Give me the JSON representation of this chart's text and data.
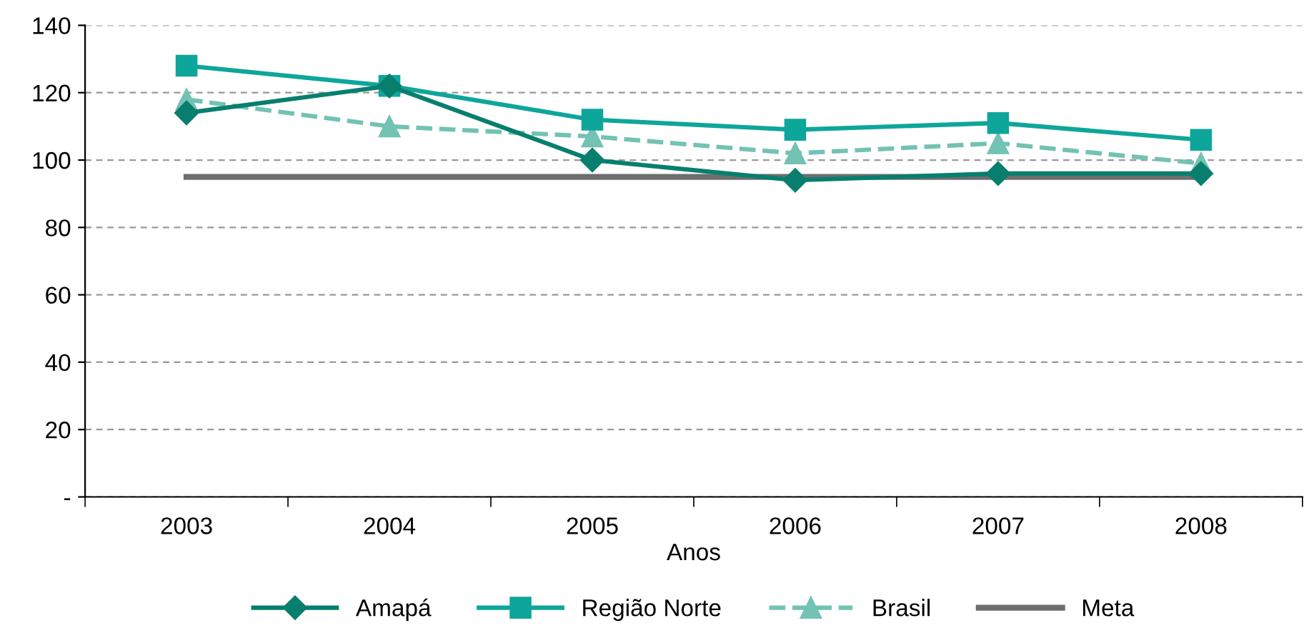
{
  "chart_data": {
    "type": "line",
    "xlabel": "Anos",
    "categories": [
      "2003",
      "2004",
      "2005",
      "2006",
      "2007",
      "2008"
    ],
    "series": [
      {
        "name": "Amapá",
        "color": "#087f6e",
        "marker": "diamond",
        "line_style": "solid",
        "values": [
          114,
          122,
          100,
          94,
          96,
          96
        ]
      },
      {
        "name": "Região Norte",
        "color": "#0ea69a",
        "marker": "square",
        "line_style": "solid",
        "values": [
          128,
          122,
          112,
          109,
          111,
          106
        ]
      },
      {
        "name": "Brasil",
        "color": "#73c2b3",
        "marker": "triangle",
        "line_style": "dashed",
        "values": [
          118,
          110,
          107,
          102,
          105,
          99
        ]
      },
      {
        "name": "Meta",
        "color": "#6d6e70",
        "marker": "none",
        "line_style": "solid",
        "values": [
          95,
          95,
          95,
          95,
          95,
          95
        ]
      }
    ],
    "ylim": [
      0,
      140
    ],
    "yticks": [
      {
        "value": 0,
        "label": "-"
      },
      20,
      40,
      60,
      80,
      100,
      120,
      140
    ],
    "grid": "y",
    "legend": "bottom"
  }
}
